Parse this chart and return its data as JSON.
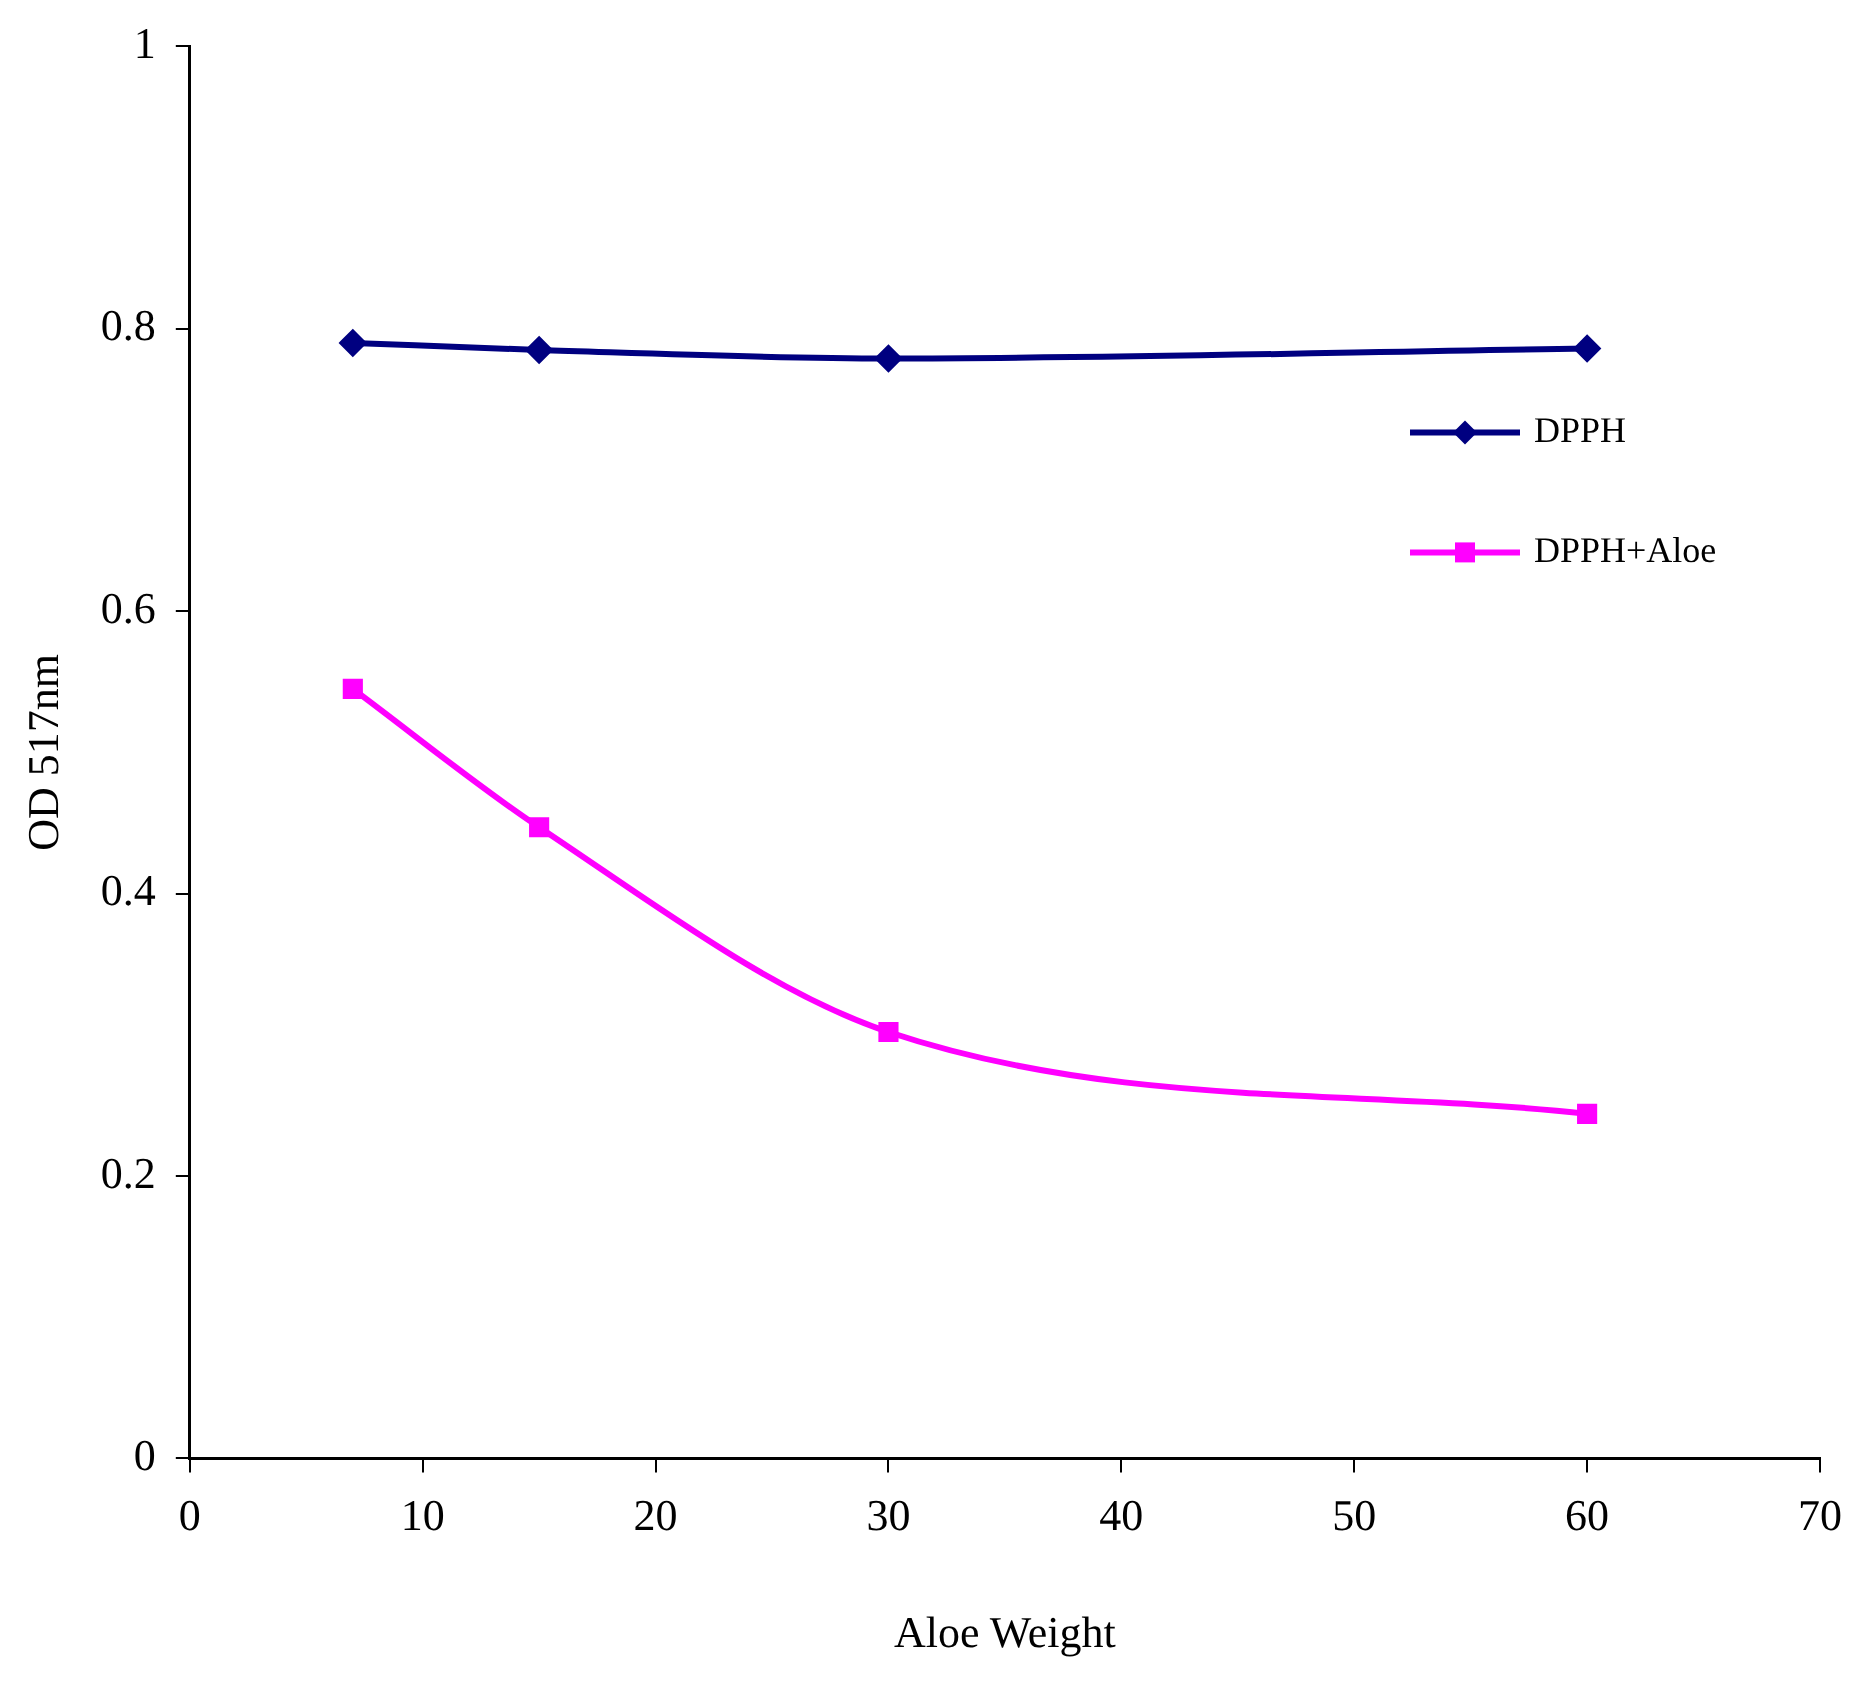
{
  "chart_data": {
    "type": "line",
    "xlabel": "Aloe Weight",
    "ylabel": "OD 517nm",
    "x": [
      7,
      15,
      30,
      60
    ],
    "series": [
      {
        "name": "DPPH",
        "color": "#000080",
        "marker": "diamond",
        "values": [
          0.79,
          0.785,
          0.779,
          0.786
        ]
      },
      {
        "name": "DPPH+Aloe",
        "color": "#ff00ff",
        "marker": "square",
        "values": [
          0.545,
          0.447,
          0.302,
          0.244
        ]
      }
    ],
    "xlim": [
      0,
      70
    ],
    "xticks": [
      0,
      10,
      20,
      30,
      40,
      50,
      60,
      70
    ],
    "ylim": [
      0,
      1
    ],
    "yticks": [
      0,
      0.2,
      0.4,
      0.6,
      0.8,
      1
    ],
    "grid": false,
    "legend": "right",
    "line_style": "solid"
  }
}
